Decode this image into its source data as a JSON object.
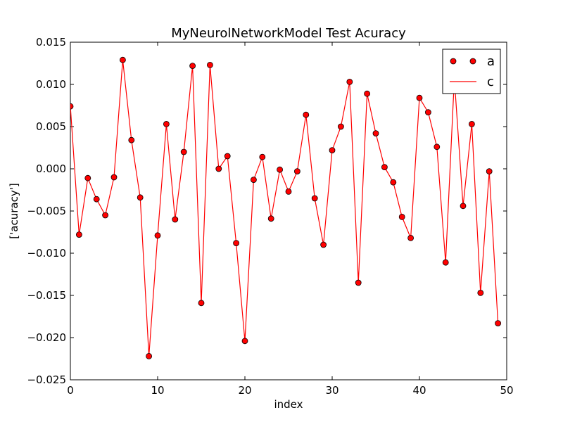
{
  "chart_data": {
    "type": "line",
    "title": "MyNeurolNetworkModel Test Acuracy",
    "xlabel": "index",
    "ylabel": "['acuracy']",
    "xlim": [
      0,
      50
    ],
    "ylim": [
      -0.025,
      0.015
    ],
    "x_ticks": [
      0,
      10,
      20,
      30,
      40,
      50
    ],
    "x_tick_labels": [
      "0",
      "10",
      "20",
      "30",
      "40",
      "50"
    ],
    "y_ticks": [
      -0.025,
      -0.02,
      -0.015,
      -0.01,
      -0.005,
      0.0,
      0.005,
      0.01,
      0.015
    ],
    "y_tick_labels": [
      "−0.025",
      "−0.020",
      "−0.015",
      "−0.010",
      "−0.005",
      "0.000",
      "0.005",
      "0.010",
      "0.015"
    ],
    "grid": false,
    "legend_position": "top-right",
    "series": [
      {
        "name": "a",
        "style": "markers",
        "color": "#ff0000",
        "x": [
          0,
          1,
          2,
          3,
          4,
          5,
          6,
          7,
          8,
          9,
          10,
          11,
          12,
          13,
          14,
          15,
          16,
          17,
          18,
          19,
          20,
          21,
          22,
          23,
          24,
          25,
          26,
          27,
          28,
          29,
          30,
          31,
          32,
          33,
          34,
          35,
          36,
          37,
          38,
          39,
          40,
          41,
          42,
          43,
          44,
          45,
          46,
          47,
          48,
          49
        ],
        "y": [
          0.0074,
          -0.0078,
          -0.0011,
          -0.0036,
          -0.0055,
          -0.001,
          0.0129,
          0.0034,
          -0.0034,
          -0.0222,
          -0.0079,
          0.0053,
          -0.006,
          0.002,
          0.0122,
          -0.0159,
          0.0123,
          0.0,
          0.0015,
          -0.0088,
          -0.0204,
          -0.0013,
          0.0014,
          -0.0059,
          -0.0001,
          -0.0027,
          -0.0003,
          0.0064,
          -0.0035,
          -0.009,
          0.0022,
          0.005,
          0.0103,
          -0.0135,
          0.0089,
          0.0042,
          0.0002,
          -0.0016,
          -0.0057,
          -0.0082,
          0.0084,
          0.0067,
          0.0026,
          -0.0111,
          0.0107,
          -0.0044,
          0.0053,
          -0.0147,
          -0.0003,
          -0.0183
        ]
      },
      {
        "name": "c",
        "style": "line",
        "color": "#ff0000",
        "x": [
          0,
          1,
          2,
          3,
          4,
          5,
          6,
          7,
          8,
          9,
          10,
          11,
          12,
          13,
          14,
          15,
          16,
          17,
          18,
          19,
          20,
          21,
          22,
          23,
          24,
          25,
          26,
          27,
          28,
          29,
          30,
          31,
          32,
          33,
          34,
          35,
          36,
          37,
          38,
          39,
          40,
          41,
          42,
          43,
          44,
          45,
          46,
          47,
          48,
          49
        ],
        "y": [
          0.0074,
          -0.0078,
          -0.0011,
          -0.0036,
          -0.0055,
          -0.001,
          0.0129,
          0.0034,
          -0.0034,
          -0.0222,
          -0.0079,
          0.0053,
          -0.006,
          0.002,
          0.0122,
          -0.0159,
          0.0123,
          0.0,
          0.0015,
          -0.0088,
          -0.0204,
          -0.0013,
          0.0014,
          -0.0059,
          -0.0001,
          -0.0027,
          -0.0003,
          0.0064,
          -0.0035,
          -0.009,
          0.0022,
          0.005,
          0.0103,
          -0.0135,
          0.0089,
          0.0042,
          0.0002,
          -0.0016,
          -0.0057,
          -0.0082,
          0.0084,
          0.0067,
          0.0026,
          -0.0111,
          0.0107,
          -0.0044,
          0.0053,
          -0.0147,
          -0.0003,
          -0.0183
        ]
      }
    ]
  }
}
